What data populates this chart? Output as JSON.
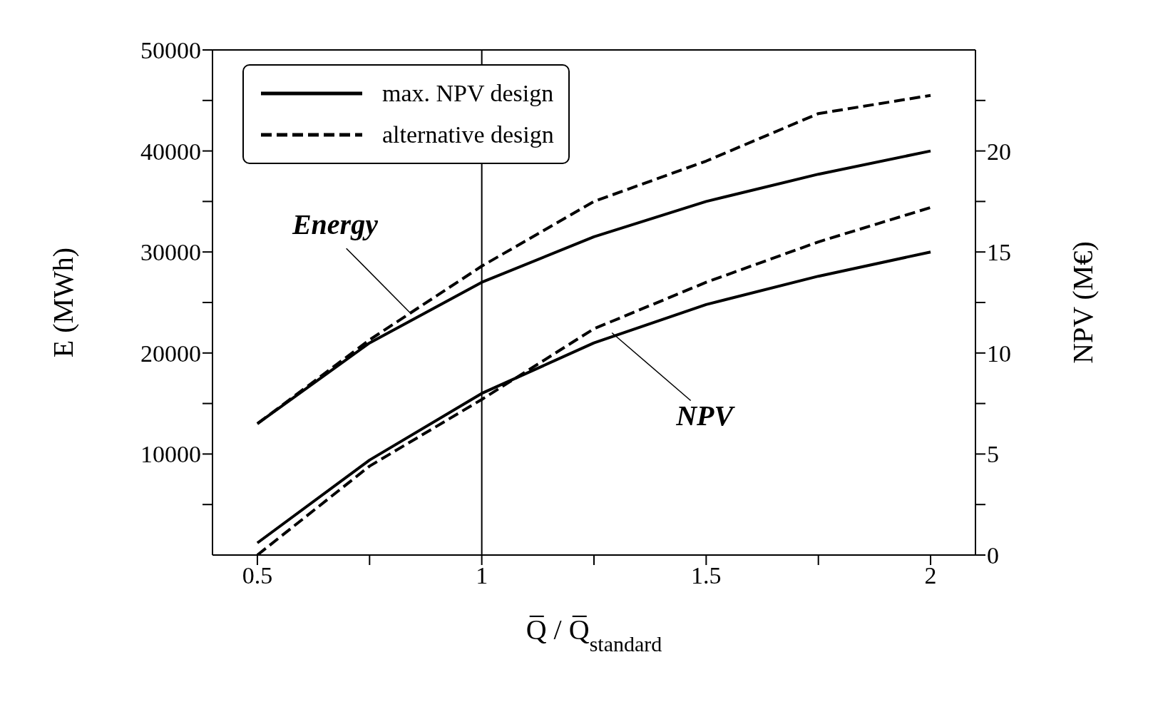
{
  "chart_data": {
    "type": "line",
    "xlabel": "Q̅ / Q̅$_{standard}$",
    "ylabel": "E  (MWh)",
    "y2label": "NPV  (M€)",
    "x": [
      0.5,
      0.75,
      1,
      1.25,
      1.5,
      1.75,
      2
    ],
    "xlim": [
      0.4,
      2.1
    ],
    "xticks": [
      0.5,
      {
        "value": 0.75,
        "label": null
      },
      1,
      {
        "value": 1.25,
        "label": null
      },
      1.5,
      {
        "value": 1.75,
        "label": null
      },
      2
    ],
    "ylim": [
      0,
      50000
    ],
    "yticks": [
      {
        "value": 5000,
        "label": null
      },
      10000,
      {
        "value": 15000,
        "label": null
      },
      20000,
      {
        "value": 25000,
        "label": null
      },
      30000,
      {
        "value": 35000,
        "label": null
      },
      40000,
      {
        "value": 45000,
        "label": null
      },
      50000
    ],
    "y2lim": [
      0,
      25
    ],
    "y2ticks": [
      0,
      {
        "value": 2.5,
        "label": null
      },
      5,
      {
        "value": 7.5,
        "label": null
      },
      10,
      {
        "value": 12.5,
        "label": null
      },
      15,
      {
        "value": 17.5,
        "label": null
      },
      20,
      {
        "value": 22.5,
        "label": null
      }
    ],
    "series": [
      {
        "name": "max. NPV design",
        "color": "#000000",
        "line_style": "solid",
        "values": [
          13000,
          21000,
          27000,
          31500,
          35000,
          37700,
          40000
        ]
      },
      {
        "name": "alternative design",
        "color": "#000000",
        "line_style": "dashed",
        "values": [
          13000,
          21300,
          28600,
          35000,
          39000,
          43700,
          45500
        ]
      },
      {
        "color": "#000000",
        "line_style": "solid",
        "axis": "y2",
        "values": [
          0.6,
          4.7,
          8.0,
          10.5,
          12.4,
          13.8,
          15.0
        ]
      },
      {
        "color": "#000000",
        "line_style": "dashed",
        "axis": "y2",
        "values": [
          0,
          4.4,
          7.7,
          11.2,
          13.5,
          15.5,
          17.2
        ]
      }
    ],
    "ref_lines": [
      {
        "axis": "x",
        "value": 1,
        "color": "#000000",
        "line_style": "solid"
      }
    ],
    "annotations": [
      {
        "text": "Energy",
        "x": 0.84,
        "y": 24000
      },
      {
        "text": "NPV",
        "x": 1.29,
        "y": 22000
      }
    ],
    "legend": "top left",
    "marker": "none"
  }
}
